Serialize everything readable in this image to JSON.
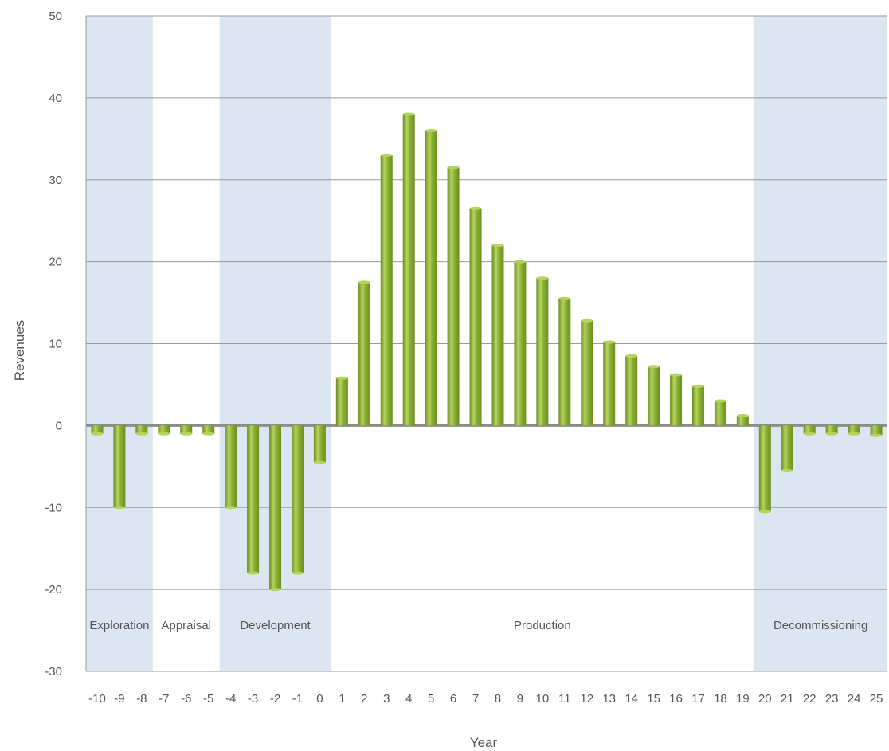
{
  "chart_data": {
    "type": "bar",
    "xlabel": "Year",
    "ylabel": "Revenues",
    "ylim": [
      -30,
      50
    ],
    "yticks": [
      50,
      40,
      30,
      20,
      10,
      0,
      -10,
      -20,
      -30
    ],
    "grid": true,
    "categories": [
      "-10",
      "-9",
      "-8",
      "-7",
      "-6",
      "-5",
      "-4",
      "-3",
      "-2",
      "-1",
      "0",
      "1",
      "2",
      "3",
      "4",
      "5",
      "6",
      "7",
      "8",
      "9",
      "10",
      "11",
      "12",
      "13",
      "14",
      "15",
      "16",
      "17",
      "18",
      "19",
      "20",
      "21",
      "22",
      "23",
      "24",
      "25"
    ],
    "values": [
      -1,
      -10,
      -1,
      -1,
      -1,
      -1,
      -10,
      -18,
      -20,
      -18,
      -4.5,
      5.8,
      17.5,
      33,
      38,
      36,
      31.5,
      26.5,
      22,
      20,
      18,
      15.5,
      12.8,
      10.2,
      8.5,
      7.2,
      6.2,
      4.8,
      3,
      1.2,
      -10.5,
      -5.5,
      -1,
      -1,
      -1,
      -1.2
    ],
    "phases": [
      {
        "label": "Exploration",
        "from": "-10",
        "to": "-8",
        "shaded": true
      },
      {
        "label": "Appraisal",
        "from": "-7",
        "to": "-5",
        "shaded": false
      },
      {
        "label": "Development",
        "from": "-4",
        "to": "0",
        "shaded": true
      },
      {
        "label": "Production",
        "from": "1",
        "to": "19",
        "shaded": false
      },
      {
        "label": "Decommissioning",
        "from": "20",
        "to": "25",
        "shaded": true
      }
    ],
    "colors": {
      "bar": "#8ab033",
      "bar_light": "#b5d45e",
      "bar_dark": "#6c8e22",
      "phase_band": "#dce6f0",
      "grid": "#9a9a9a",
      "zero_line": "#8c8c8c",
      "text": "#555555"
    }
  }
}
